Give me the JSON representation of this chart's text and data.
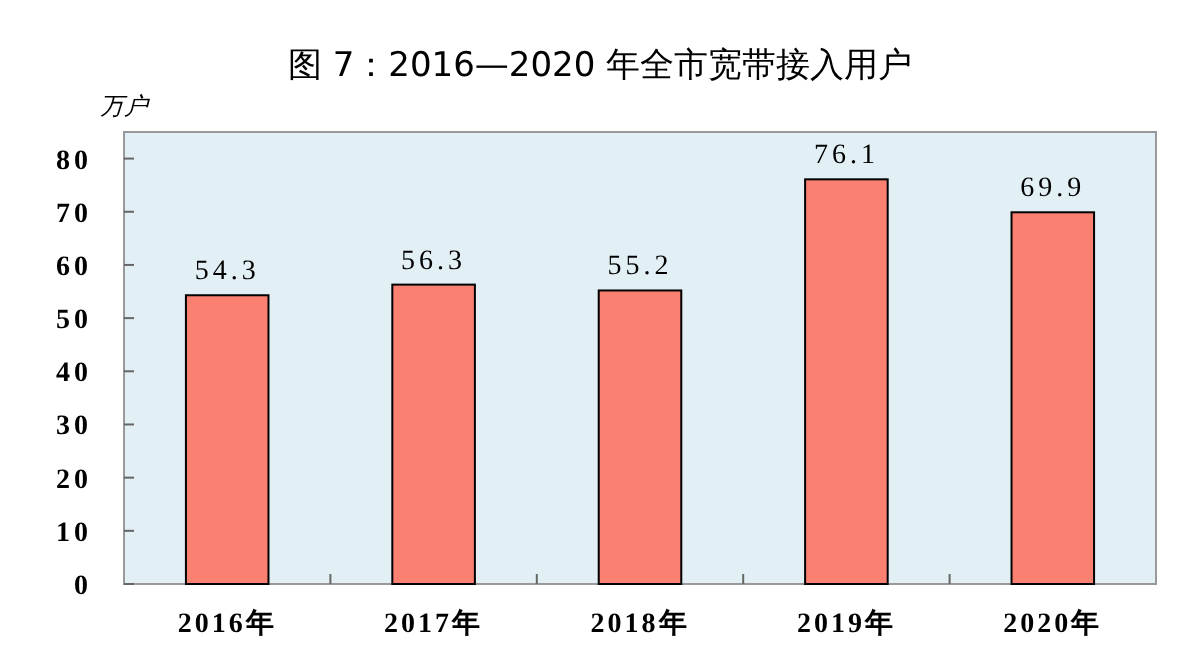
{
  "chart_data": {
    "type": "bar",
    "title": "图 7：2016—2020 年全市宽带接入用户",
    "ylabel": "万户",
    "categories": [
      "2016年",
      "2017年",
      "2018年",
      "2019年",
      "2020年"
    ],
    "values": [
      54.3,
      56.3,
      55.2,
      76.1,
      69.9
    ],
    "color": "#fa8072",
    "ylim": [
      0,
      85
    ],
    "yticks": [
      0,
      10,
      20,
      30,
      40,
      50,
      60,
      70,
      80
    ],
    "grid": false,
    "data_labels": true
  }
}
